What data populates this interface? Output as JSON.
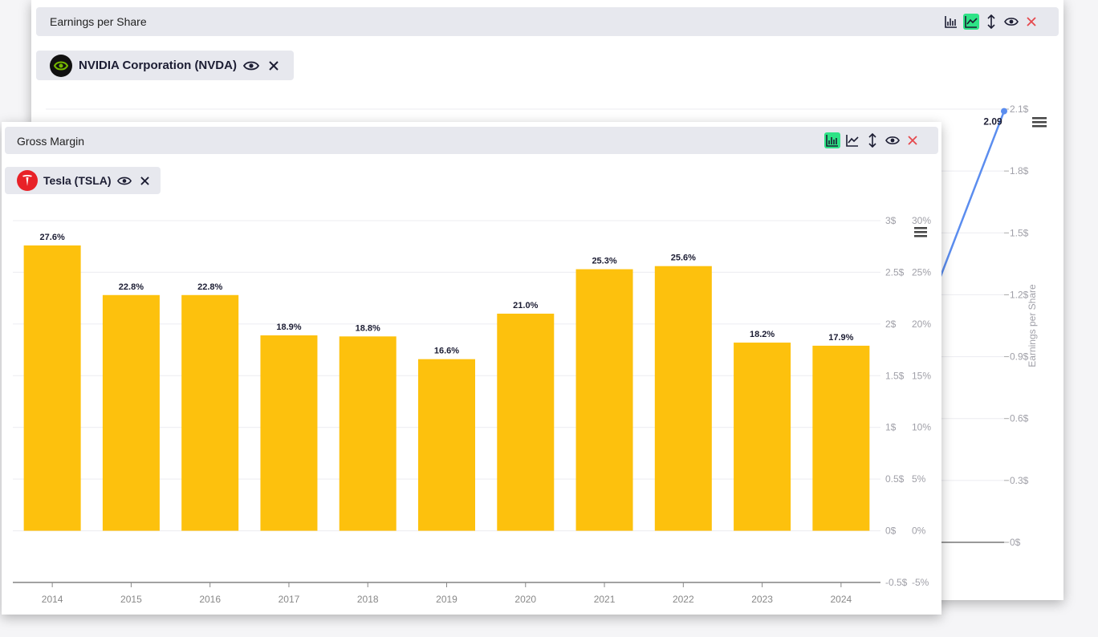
{
  "back_chart": {
    "title": "Earnings per Share",
    "company": {
      "name": "NVIDIA Corporation (NVDA)",
      "logo_icon": "nvidia-logo-icon"
    },
    "toolbar": {
      "active": "line",
      "close_color": "#e5484d",
      "active_color": "#2ee386"
    },
    "chart_data": {
      "type": "line",
      "series": [
        {
          "name": "NVIDIA Corporation (NVDA)",
          "color": "#5b8def",
          "last_value": 2.09,
          "last_value_label": "2.09"
        }
      ],
      "ylabel": "Earnings per Share",
      "ylim": [
        0,
        2.1
      ],
      "y_ticks": [
        "2.1$",
        "1.8$",
        "1.5$",
        "1.2$",
        "0.9$",
        "0.6$",
        "0.3$",
        "0$"
      ],
      "menu_icon": "hamburger-menu-icon"
    }
  },
  "front_chart": {
    "title": "Gross Margin",
    "company": {
      "name": "Tesla (TSLA)",
      "logo_icon": "tesla-logo-icon"
    },
    "toolbar": {
      "active": "bar",
      "close_color": "#e5484d",
      "active_color": "#2ee386"
    },
    "chart_data": {
      "type": "bar",
      "categories": [
        "2014",
        "2015",
        "2016",
        "2017",
        "2018",
        "2019",
        "2020",
        "2021",
        "2022",
        "2023",
        "2024"
      ],
      "series": [
        {
          "name": "Tesla (TSLA)",
          "color": "#fdc10d",
          "values": [
            27.6,
            22.8,
            22.8,
            18.9,
            18.8,
            16.6,
            21.0,
            25.3,
            25.6,
            18.2,
            17.9
          ],
          "labels": [
            "27.6%",
            "22.8%",
            "22.8%",
            "18.9%",
            "18.8%",
            "16.6%",
            "21.0%",
            "25.3%",
            "25.6%",
            "18.2%",
            "17.9%"
          ]
        }
      ],
      "ylim": [
        -5,
        30
      ],
      "y_ticks_pct": [
        "30%",
        "25%",
        "20%",
        "15%",
        "10%",
        "5%",
        "0%",
        "-5%"
      ],
      "y_ticks_dollar": [
        "3$",
        "2.5$",
        "2$",
        "1.5$",
        "1$",
        "0.5$",
        "0$",
        "-0.5$"
      ],
      "grid": true,
      "menu_icon": "hamburger-menu-icon"
    }
  }
}
